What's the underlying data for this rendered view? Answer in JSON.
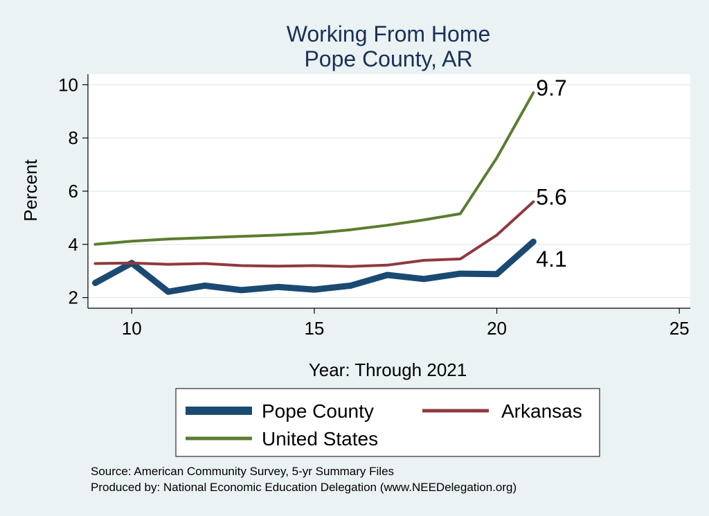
{
  "chart_data": {
    "type": "line",
    "title": "Working From Home",
    "subtitle": "Pope County, AR",
    "xlabel": "Year: Through 2021",
    "ylabel": "Percent",
    "xlim": [
      8.8,
      25.3
    ],
    "ylim": [
      1.6,
      10.4
    ],
    "xticks": [
      10,
      15,
      20,
      25
    ],
    "yticks": [
      2,
      4,
      6,
      8,
      10
    ],
    "grid": true,
    "legend": "bottom",
    "x": [
      9,
      10,
      11,
      12,
      13,
      14,
      15,
      16,
      17,
      18,
      19,
      20,
      21
    ],
    "series": [
      {
        "name": "Pope County",
        "color": "#1a4a72",
        "width": 9,
        "values": [
          2.55,
          3.3,
          2.22,
          2.45,
          2.28,
          2.4,
          2.3,
          2.45,
          2.85,
          2.7,
          2.9,
          2.88,
          4.1
        ],
        "end_label": "4.1"
      },
      {
        "name": "Arkansas",
        "color": "#8e3a3f",
        "width": 4,
        "values": [
          3.28,
          3.3,
          3.25,
          3.28,
          3.2,
          3.18,
          3.2,
          3.17,
          3.22,
          3.4,
          3.45,
          4.35,
          5.6
        ],
        "end_label": "5.6"
      },
      {
        "name": "United States",
        "color": "#5a7d2e",
        "width": 4,
        "values": [
          4.0,
          4.12,
          4.2,
          4.25,
          4.3,
          4.35,
          4.42,
          4.55,
          4.72,
          4.92,
          5.15,
          7.25,
          9.7
        ],
        "end_label": "9.7"
      }
    ]
  },
  "source_line1": "Source: American Community Survey, 5-yr Summary Files",
  "source_line2": "Produced by: National Economic Education Delegation (www.NEEDelegation.org)"
}
